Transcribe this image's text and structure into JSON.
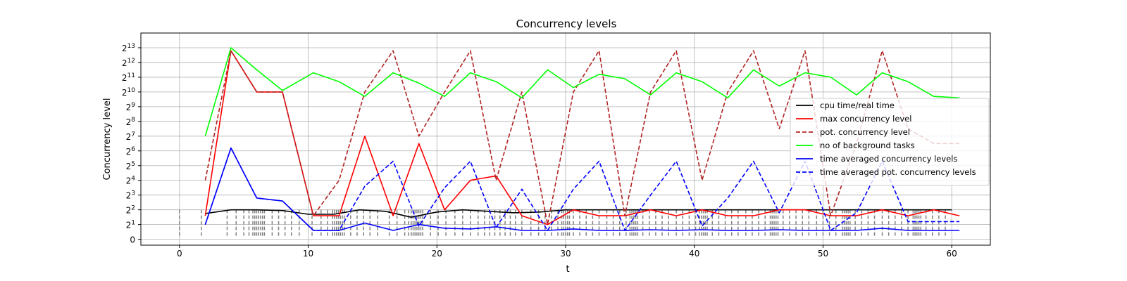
{
  "chart_data": {
    "type": "line",
    "title": "Concurrency levels",
    "xlabel": "t",
    "ylabel": "Concurrency level",
    "xlim": [
      -3,
      63
    ],
    "ylim": [
      -0.4,
      14.0
    ],
    "y_scale": "log2 (axis position = log2(level); 0 shown at bottom)",
    "grid": true,
    "legend_position": "center-right",
    "x_ticks": [
      "0",
      "10",
      "20",
      "30",
      "40",
      "50",
      "60"
    ],
    "x_tick_values": [
      0,
      10,
      20,
      30,
      40,
      50,
      60
    ],
    "y_ticks": [
      {
        "value": 0,
        "base": "0",
        "exp": ""
      },
      {
        "value": 1,
        "base": "2",
        "exp": "1"
      },
      {
        "value": 2,
        "base": "2",
        "exp": "2"
      },
      {
        "value": 3,
        "base": "2",
        "exp": "3"
      },
      {
        "value": 4,
        "base": "2",
        "exp": "4"
      },
      {
        "value": 5,
        "base": "2",
        "exp": "5"
      },
      {
        "value": 6,
        "base": "2",
        "exp": "6"
      },
      {
        "value": 7,
        "base": "2",
        "exp": "7"
      },
      {
        "value": 8,
        "base": "2",
        "exp": "8"
      },
      {
        "value": 9,
        "base": "2",
        "exp": "9"
      },
      {
        "value": 10,
        "base": "2",
        "exp": "10"
      },
      {
        "value": 11,
        "base": "2",
        "exp": "11"
      },
      {
        "value": 12,
        "base": "2",
        "exp": "12"
      },
      {
        "value": 13,
        "base": "2",
        "exp": "13"
      }
    ],
    "series": [
      {
        "name": "cpu time/real time",
        "color": "#000000",
        "dash": "solid",
        "x": [
          2,
          4,
          6,
          8,
          10,
          12,
          14,
          16,
          18,
          20,
          22,
          24,
          26,
          28,
          30,
          32,
          34,
          36,
          38,
          40,
          42,
          44,
          46,
          48,
          50,
          52,
          54,
          56,
          58,
          60
        ],
        "y": [
          1.75,
          2.0,
          2.0,
          1.95,
          1.7,
          1.7,
          2.0,
          1.9,
          1.5,
          1.85,
          2.0,
          1.9,
          1.8,
          1.85,
          2.0,
          2.0,
          2.0,
          2.0,
          2.0,
          2.0,
          2.0,
          2.0,
          2.0,
          2.0,
          2.0,
          2.0,
          2.0,
          2.0,
          2.0,
          2.0
        ]
      },
      {
        "name": "max concurrency level",
        "color": "#ff0000",
        "dash": "solid",
        "x": [
          2,
          4,
          6,
          8,
          10.4,
          12.4,
          14.4,
          16.6,
          18.6,
          20.6,
          22.6,
          24.6,
          26.6,
          28.6,
          30.6,
          32.6,
          34.6,
          36.6,
          38.6,
          40.6,
          42.6,
          44.6,
          46.6,
          48.6,
          50.6,
          52.6,
          54.6,
          56.6,
          58.6,
          60.6
        ],
        "y": [
          1.6,
          12.8,
          10.0,
          10.0,
          1.6,
          1.6,
          7.0,
          1.6,
          6.5,
          2.0,
          4.0,
          4.3,
          1.6,
          1.0,
          2.0,
          1.6,
          1.6,
          2.0,
          1.6,
          2.0,
          1.6,
          1.6,
          2.0,
          2.0,
          1.6,
          1.6,
          2.0,
          1.6,
          2.0,
          1.6
        ]
      },
      {
        "name": "pot. concurrency level",
        "color": "#b22222",
        "dash": "dashed",
        "x": [
          2,
          4,
          6,
          8,
          10.4,
          12.4,
          14.4,
          16.6,
          18.6,
          20.6,
          22.6,
          24.6,
          26.6,
          28.6,
          30.6,
          32.6,
          34.6,
          36.6,
          38.6,
          40.6,
          42.6,
          44.6,
          46.6,
          48.6,
          50.6,
          52.6,
          54.6,
          56.6,
          58.6,
          60.6
        ],
        "y": [
          4.0,
          12.8,
          10.0,
          10.0,
          1.6,
          4.0,
          10.0,
          12.8,
          7.0,
          10.0,
          12.8,
          4.0,
          10.0,
          1.0,
          10.0,
          12.8,
          1.6,
          10.0,
          12.8,
          4.0,
          10.0,
          12.8,
          7.5,
          12.8,
          1.6,
          6.5,
          12.8,
          7.5,
          6.5,
          6.5
        ]
      },
      {
        "name": "no of background tasks",
        "color": "#00ff00",
        "dash": "solid",
        "x": [
          2,
          4,
          6,
          8,
          10.4,
          12.4,
          14.4,
          16.6,
          18.6,
          20.6,
          22.6,
          24.6,
          26.6,
          28.6,
          30.6,
          32.6,
          34.6,
          36.6,
          38.6,
          40.6,
          42.6,
          44.6,
          46.6,
          48.6,
          50.6,
          52.6,
          54.6,
          56.6,
          58.6,
          60.6
        ],
        "y": [
          7.0,
          13.0,
          11.5,
          10.1,
          11.3,
          10.7,
          9.7,
          11.3,
          10.6,
          9.7,
          11.3,
          10.7,
          9.6,
          11.5,
          10.3,
          11.2,
          10.9,
          9.8,
          11.3,
          10.7,
          9.6,
          11.5,
          10.4,
          11.3,
          11.0,
          9.8,
          11.3,
          10.7,
          9.7,
          9.6
        ]
      },
      {
        "name": "time averaged concurrency levels",
        "color": "#0000ff",
        "dash": "solid",
        "x": [
          2,
          4,
          6,
          8,
          10.4,
          12.4,
          14.4,
          16.6,
          18.6,
          20.6,
          22.6,
          24.6,
          26.6,
          28.6,
          30.6,
          32.6,
          34.6,
          36.6,
          38.6,
          40.6,
          42.6,
          44.6,
          46.6,
          48.6,
          50.6,
          52.6,
          54.6,
          56.6,
          58.6,
          60.6
        ],
        "y": [
          1.0,
          6.2,
          2.8,
          2.6,
          0.6,
          0.6,
          1.1,
          0.6,
          1.0,
          0.75,
          0.7,
          0.85,
          0.6,
          0.6,
          0.7,
          0.6,
          0.6,
          0.65,
          0.6,
          0.65,
          0.6,
          0.6,
          0.65,
          0.6,
          0.6,
          0.6,
          0.75,
          0.6,
          0.6,
          0.6
        ]
      },
      {
        "name": "time averaged pot. concurrency levels",
        "color": "#0000ff",
        "dash": "dashed",
        "x": [
          2,
          4,
          6,
          8,
          10.4,
          12.4,
          14.4,
          16.6,
          18.6,
          20.6,
          22.6,
          24.6,
          26.6,
          28.6,
          30.6,
          32.6,
          34.6,
          36.6,
          38.6,
          40.6,
          42.6,
          44.6,
          46.6,
          48.6,
          50.6,
          52.6,
          54.6,
          56.6,
          58.6,
          60.6
        ],
        "y": [
          1.0,
          6.2,
          2.8,
          2.6,
          0.6,
          0.6,
          3.6,
          5.3,
          0.9,
          3.5,
          5.3,
          0.8,
          3.4,
          0.6,
          3.4,
          5.3,
          0.6,
          3.0,
          5.3,
          0.9,
          2.8,
          5.3,
          1.8,
          5.3,
          0.6,
          1.8,
          5.3,
          1.2,
          1.2,
          1.2
        ]
      }
    ],
    "event_markers": {
      "color": "#808080",
      "dash": "dashed",
      "y_top": 2.0,
      "t": [
        0,
        1.7,
        3.7,
        4.4,
        5.0,
        5.4,
        5.7,
        5.85,
        6.0,
        6.15,
        6.3,
        6.45,
        6.6,
        7.2,
        7.7,
        8.2,
        8.7,
        9.3,
        10.3,
        11.0,
        11.5,
        11.9,
        12.05,
        12.2,
        12.35,
        12.5,
        12.65,
        12.8,
        13.3,
        13.8,
        14.3,
        14.8,
        15.4,
        16.3,
        16.9,
        17.5,
        17.8,
        18.0,
        18.15,
        18.3,
        18.45,
        18.6,
        18.75,
        18.9,
        19.5,
        20.1,
        20.7,
        21.4,
        22.0,
        22.6,
        23.2,
        23.7,
        24.1,
        24.5,
        24.9,
        25.3,
        25.7,
        26.1,
        26.6,
        27.3,
        27.9,
        28.4,
        28.9,
        29.4,
        29.7,
        29.85,
        30.0,
        30.15,
        30.3,
        30.6,
        31.1,
        31.6,
        32.1,
        32.6,
        33.2,
        33.7,
        34.2,
        34.7,
        35.0,
        35.15,
        35.3,
        35.45,
        35.6,
        36.0,
        36.5,
        37.0,
        37.5,
        38.0,
        38.6,
        39.1,
        39.6,
        40.1,
        40.4,
        40.55,
        40.7,
        40.85,
        41.0,
        41.4,
        41.9,
        42.4,
        42.9,
        43.4,
        44.0,
        44.5,
        45.0,
        45.5,
        45.9,
        46.05,
        46.2,
        46.35,
        46.5,
        46.9,
        47.4,
        47.9,
        48.4,
        48.9,
        49.5,
        50.0,
        50.5,
        51.0,
        51.5,
        51.65,
        51.8,
        51.95,
        52.1,
        52.5,
        53.0,
        53.5,
        54.0,
        54.6,
        55.1,
        55.6,
        56.1,
        56.6,
        57.0,
        57.15,
        57.3,
        57.45,
        57.6,
        58.0,
        58.5,
        59.0,
        59.5
      ]
    }
  }
}
